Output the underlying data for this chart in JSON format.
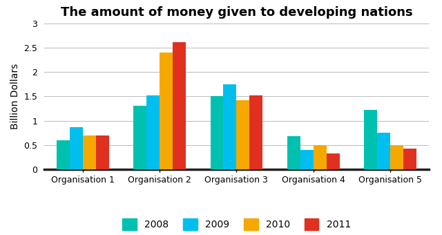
{
  "title": "The amount of money given to developing nations",
  "ylabel": "Billion Dollars",
  "categories": [
    "Organisation 1",
    "Organisation 2",
    "Organisation 3",
    "Organisation 4",
    "Organisation 5"
  ],
  "series": {
    "2008": [
      0.6,
      1.3,
      1.5,
      0.68,
      1.22
    ],
    "2009": [
      0.87,
      1.52,
      1.75,
      0.4,
      0.75
    ],
    "2010": [
      0.7,
      2.4,
      1.42,
      0.5,
      0.5
    ],
    "2011": [
      0.7,
      2.62,
      1.52,
      0.32,
      0.42
    ]
  },
  "colors": {
    "2008": "#00C0B0",
    "2009": "#00BFEF",
    "2010": "#F5A800",
    "2011": "#E03020"
  },
  "legend_labels": [
    "2008",
    "2009",
    "2010",
    "2011"
  ],
  "ylim": [
    0,
    3.0
  ],
  "yticks": [
    0,
    0.5,
    1.0,
    1.5,
    2.0,
    2.5,
    3.0
  ],
  "ytick_labels": [
    "0",
    "0.5",
    "1",
    "1.5",
    "2",
    "2.5",
    "3"
  ],
  "bar_width": 0.17,
  "background_color": "#FFFFFF",
  "grid_color": "#BBBBBB",
  "title_fontsize": 13,
  "axis_label_fontsize": 10,
  "tick_fontsize": 9,
  "legend_fontsize": 10
}
